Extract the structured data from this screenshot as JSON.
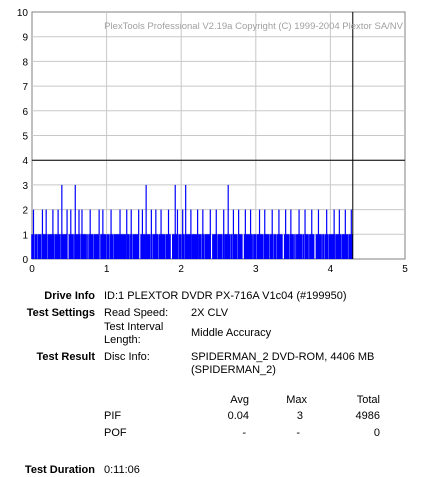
{
  "chart_data": {
    "type": "bar",
    "watermark": "PlexTools Professional V2.19a Copyright (C) 1999-2004 Plextor SA/NV",
    "xlim": [
      0,
      5
    ],
    "ylim": [
      0,
      10
    ],
    "x_ticks": [
      "0",
      "1",
      "2",
      "3",
      "4",
      "5"
    ],
    "y_ticks": [
      "0",
      "1",
      "2",
      "3",
      "4",
      "5",
      "6",
      "7",
      "8",
      "9",
      "10"
    ],
    "grid": true,
    "threshold_y": 4,
    "end_marker_x": 4.3,
    "series": [
      {
        "color": "#0000ff",
        "note_range": [
          0,
          4.3
        ]
      }
    ],
    "data_summary": {
      "avg": 0.04,
      "max": 3,
      "total": 4986
    },
    "spikes_value_3": [
      0.4,
      0.58,
      1.53,
      1.92,
      2.06,
      2.63
    ],
    "spikes_value_2": [
      0.02,
      0.14,
      0.19,
      0.28,
      0.35,
      0.47,
      0.52,
      0.63,
      0.67,
      0.78,
      0.9,
      0.95,
      1.06,
      1.18,
      1.27,
      1.33,
      1.43,
      1.48,
      1.6,
      1.66,
      1.73,
      1.83,
      1.95,
      2.02,
      2.13,
      2.22,
      2.29,
      2.39,
      2.47,
      2.57,
      2.7,
      2.77,
      2.86,
      2.93,
      3.05,
      3.12,
      3.22,
      3.31,
      3.4,
      3.47,
      3.58,
      3.66,
      3.75,
      3.84,
      3.95,
      4.05,
      4.12,
      4.2,
      4.28
    ]
  },
  "info": {
    "drive_label": "Drive Info",
    "drive_value": "ID:1 PLEXTOR DVDR PX-716A V1c04 (#199950)",
    "settings_label": "Test Settings",
    "read_speed_label": "Read Speed:",
    "read_speed_value": "2X CLV",
    "interval_label_1": "Test Interval",
    "interval_label_2": "Length:",
    "interval_value": "Middle Accuracy",
    "result_label": "Test Result",
    "disc_info_label": "Disc Info:",
    "disc_info_value_1": "SPIDERMAN_2 DVD-ROM, 4406 MB",
    "disc_info_value_2": "(SPIDERMAN_2)",
    "col_avg": "Avg",
    "col_max": "Max",
    "col_total": "Total",
    "pif_label": "PIF",
    "pif_avg": "0.04",
    "pif_max": "3",
    "pif_total": "4986",
    "pof_label": "POF",
    "pof_avg": "-",
    "pof_max": "-",
    "pof_total": "0",
    "duration_label": "Test Duration",
    "duration_value": "0:11:06"
  }
}
